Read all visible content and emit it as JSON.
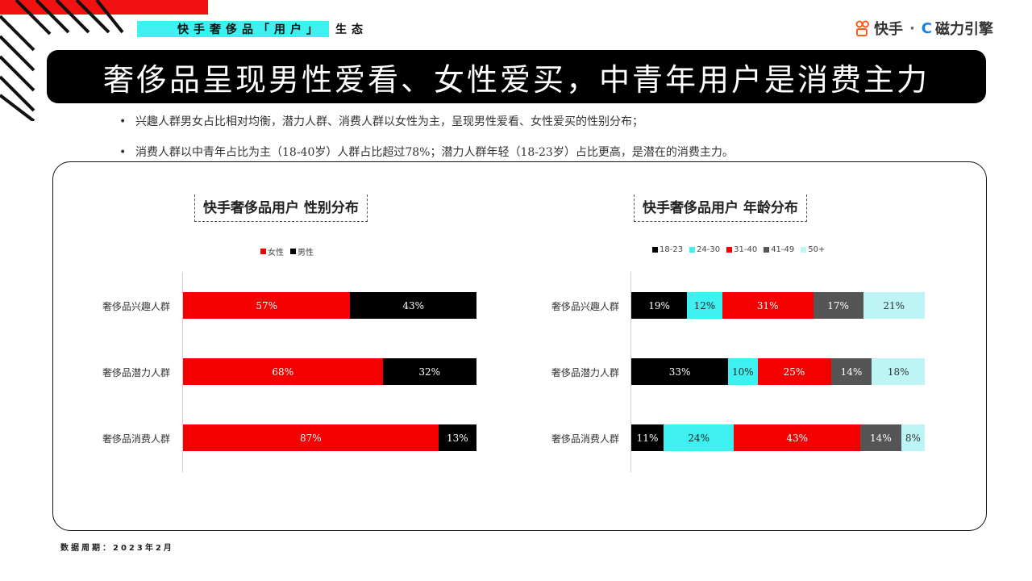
{
  "header": {
    "tag_highlight": "快手奢侈品「用户」",
    "tag_rest": "生态",
    "logo_brand": "快手",
    "logo_sep": "·",
    "logo_partner": "磁力引擎"
  },
  "banner": {
    "title": "奢侈品呈现男性爱看、女性爱买，中青年用户是消费主力"
  },
  "bullets": [
    "兴趣人群男女占比相对均衡，潜力人群、消费人群以女性为主，呈现男性爱看、女性爱买的性别分布；",
    "消费人群以中青年占比为主（18-40岁）人群占比超过78%；潜力人群年轻（18-23岁）占比更高，是潜在的消费主力。"
  ],
  "colors": {
    "red": "#f40000",
    "black": "#000000",
    "cyan": "#3ef0f0",
    "gray": "#555555",
    "lightcyan": "#bdf5f7"
  },
  "chart_data": [
    {
      "type": "bar",
      "orientation": "horizontal",
      "stacked": true,
      "title": "快手奢侈品用户 性别分布",
      "categories": [
        "奢侈品兴趣人群",
        "奢侈品潜力人群",
        "奢侈品消费人群"
      ],
      "series": [
        {
          "name": "女性",
          "color": "#f40000",
          "label_color": "#ffffff",
          "values": [
            57,
            68,
            87
          ]
        },
        {
          "name": "男性",
          "color": "#000000",
          "label_color": "#ffffff",
          "values": [
            43,
            32,
            13
          ]
        }
      ],
      "unit": "%",
      "legend": "top-center"
    },
    {
      "type": "bar",
      "orientation": "horizontal",
      "stacked": true,
      "title": "快手奢侈品用户 年龄分布",
      "categories": [
        "奢侈品兴趣人群",
        "奢侈品潜力人群",
        "奢侈品消费人群"
      ],
      "series": [
        {
          "name": "18-23",
          "color": "#000000",
          "label_color": "#ffffff",
          "values": [
            19,
            33,
            11
          ]
        },
        {
          "name": "24-30",
          "color": "#3ef0f0",
          "label_color": "#222222",
          "values": [
            12,
            10,
            24
          ]
        },
        {
          "name": "31-40",
          "color": "#f40000",
          "label_color": "#ffffff",
          "values": [
            31,
            25,
            43
          ]
        },
        {
          "name": "41-49",
          "color": "#555555",
          "label_color": "#ffffff",
          "values": [
            17,
            14,
            14
          ]
        },
        {
          "name": "50+",
          "color": "#bdf5f7",
          "label_color": "#333333",
          "values": [
            21,
            18,
            8
          ]
        }
      ],
      "unit": "%",
      "legend": "top-center"
    }
  ],
  "footer": {
    "period": "数据周期：2023年2月"
  }
}
